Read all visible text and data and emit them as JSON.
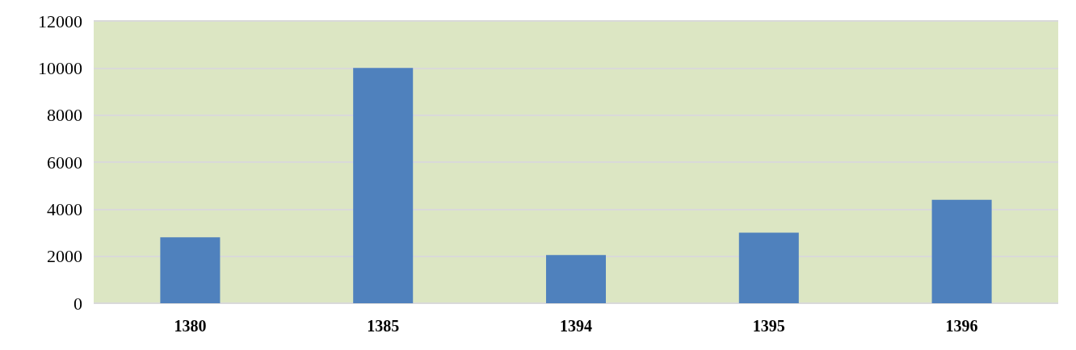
{
  "chart_data": {
    "type": "bar",
    "categories": [
      "1380",
      "1385",
      "1394",
      "1395",
      "1396"
    ],
    "values": [
      2800,
      10000,
      2050,
      3000,
      4400
    ],
    "color": "#4f81bd",
    "ylim": [
      0,
      12000
    ],
    "yticks": [
      0,
      2000,
      4000,
      6000,
      8000,
      10000,
      12000
    ],
    "grid": "y"
  }
}
